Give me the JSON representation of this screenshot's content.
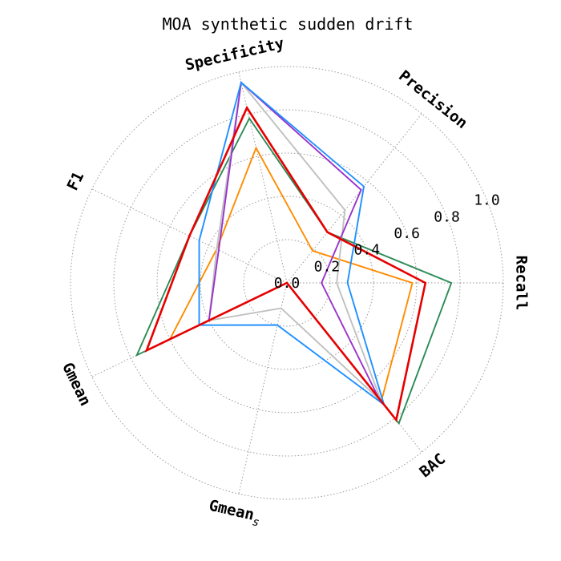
{
  "chart_data": {
    "type": "radar",
    "title": "MOA synthetic sudden drift",
    "axes": [
      "Recall",
      "Precision",
      "Specificity",
      "F1",
      "Gmean",
      "Gmean_s",
      "BAC"
    ],
    "axis_display": {
      "Recall": "Recall",
      "Precision": "Precision",
      "Specificity": "Specificity",
      "F1": "F1",
      "Gmean": "Gmean",
      "Gmean_s_base": "Gmean",
      "Gmean_s_sub": "s",
      "BAC": "BAC"
    },
    "radial_ticks": [
      "0.0",
      "0.2",
      "0.4",
      "0.6",
      "0.8",
      "1.0"
    ],
    "rlim": [
      0,
      1
    ],
    "grid": true,
    "series": [
      {
        "color": "#2e8b57",
        "values": [
          0.76,
          0.3,
          0.78,
          0.5,
          0.77,
          0.0,
          0.83
        ]
      },
      {
        "color": "#ff8c00",
        "values": [
          0.58,
          0.19,
          0.64,
          0.36,
          0.6,
          0.0,
          0.7
        ]
      },
      {
        "color": "#c0c0c0",
        "values": [
          0.23,
          0.43,
          0.95,
          0.36,
          0.4,
          0.12,
          0.7
        ]
      },
      {
        "color": "#9932cc",
        "values": [
          0.16,
          0.55,
          0.95,
          0.35,
          0.4,
          0.0,
          0.68
        ]
      },
      {
        "color": "#1e90ff",
        "values": [
          0.28,
          0.57,
          0.95,
          0.45,
          0.45,
          0.2,
          0.72
        ]
      },
      {
        "color": "#e60000",
        "values": [
          0.64,
          0.3,
          0.83,
          0.5,
          0.72,
          0.0,
          0.81
        ]
      }
    ]
  }
}
